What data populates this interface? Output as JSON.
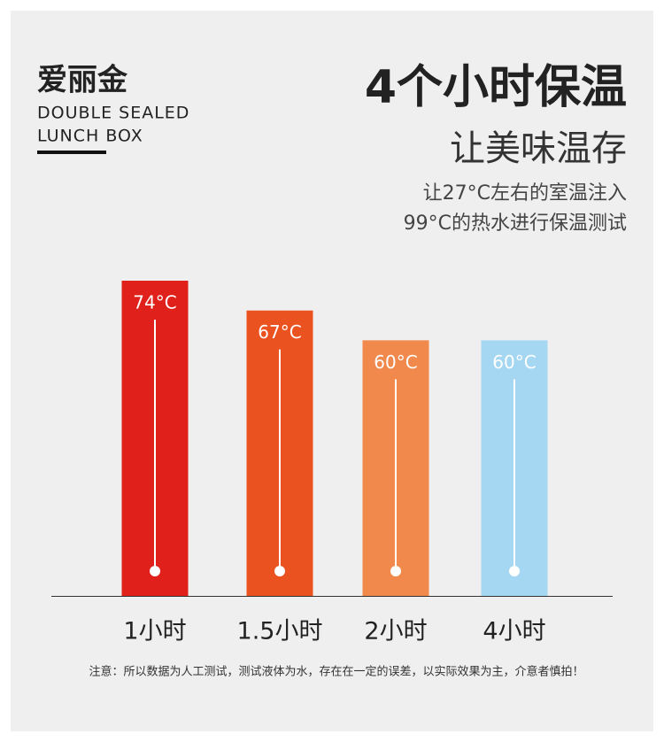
{
  "header": {
    "brand": "爱丽金",
    "brand_en": [
      "DOUBLE SEALED",
      "LUNCH BOX"
    ],
    "title": "4个小时保温",
    "subtitle": "让美味温存",
    "description": [
      "让27°C左右的室温注入",
      "99°C的热水进行保温测试"
    ]
  },
  "chart_data": {
    "type": "bar",
    "categories": [
      "1小时",
      "1.5小时",
      "2小时",
      "4小时"
    ],
    "values": [
      74,
      67,
      60,
      60
    ],
    "value_labels": [
      "74°C",
      "67°C",
      "60°C",
      "60°C"
    ],
    "colors": [
      "#e0211b",
      "#ea5220",
      "#f0894b",
      "#a5d7f2"
    ]
  },
  "footnote": "注意：所以数据为人工测试，测试液体为水，存在在一定的误差，以实际效果为主，介意者慎拍！"
}
